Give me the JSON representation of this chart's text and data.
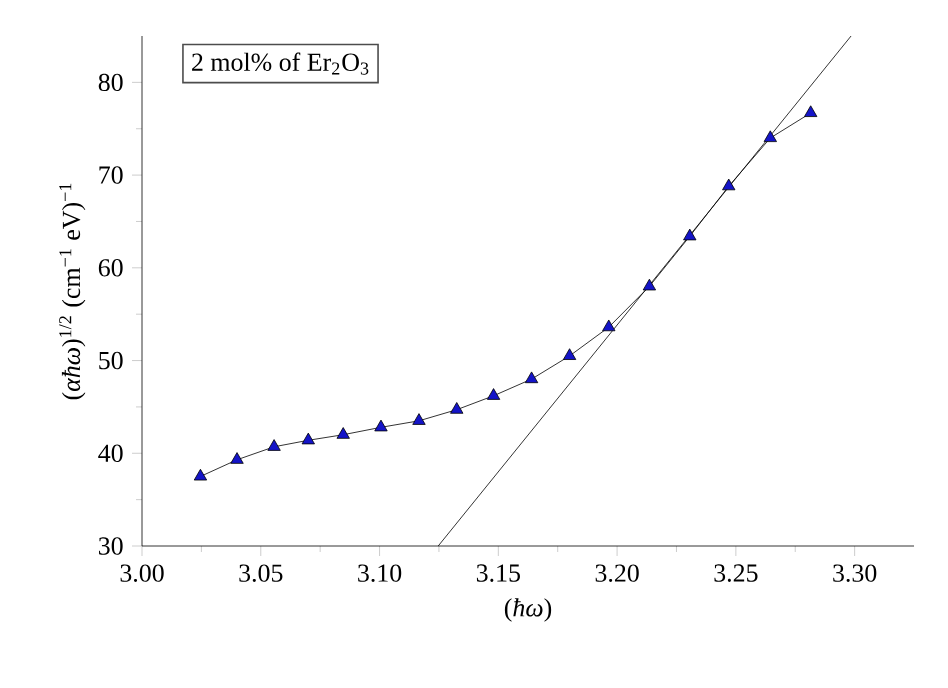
{
  "chart_data": {
    "type": "line",
    "xlabel": "(*ħω*)",
    "ylabel": "(*αħω*)$^{1/2}$ (cm$^{−1}$ eV)$^{−1}$",
    "annotations": [
      "2 mol% of Er$_{2}$O$_{3}$"
    ],
    "xlim": [
      3.0,
      3.325
    ],
    "ylim": [
      30,
      85
    ],
    "xticks": [
      {
        "value": 3.0,
        "label": "3.00"
      },
      {
        "value": 3.05,
        "label": "3.05"
      },
      {
        "value": 3.1,
        "label": "3.10"
      },
      {
        "value": 3.15,
        "label": "3.15"
      },
      {
        "value": 3.2,
        "label": "3.20"
      },
      {
        "value": 3.25,
        "label": "3.25"
      },
      {
        "value": 3.3,
        "label": "3.30"
      }
    ],
    "yticks": [
      30,
      40,
      50,
      60,
      70,
      80
    ],
    "series": [
      {
        "color": "#1414c8",
        "marker": "triangle",
        "x": [
          3.0246,
          3.04,
          3.0556,
          3.07,
          3.0847,
          3.1006,
          3.1166,
          3.1325,
          3.148,
          3.164,
          3.18,
          3.1965,
          3.2136,
          3.2306,
          3.247,
          3.2645,
          3.2815
        ],
        "values": [
          37.5,
          39.3,
          40.7,
          41.4,
          42.0,
          42.8,
          43.5,
          44.7,
          46.2,
          48.0,
          50.5,
          53.6,
          58.0,
          63.4,
          68.8,
          74.0,
          76.7
        ]
      },
      {
        "type": "line",
        "color": "#000000",
        "marker": "none",
        "x": [
          3.1247,
          3.2985
        ],
        "values": [
          30,
          85
        ]
      }
    ]
  }
}
